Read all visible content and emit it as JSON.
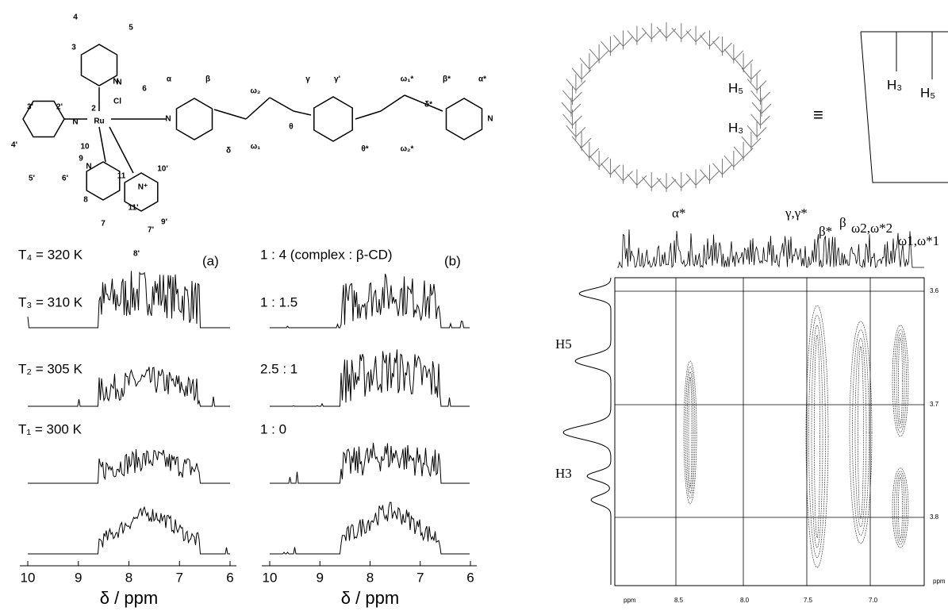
{
  "structure": {
    "labels": [
      "4",
      "5",
      "3",
      "6",
      "3'",
      "2'",
      "2",
      "N",
      "Cl",
      "Ru",
      "10",
      "N",
      "N",
      "N",
      "9",
      "4'",
      "5'",
      "6'",
      "N",
      "N⁺",
      "8",
      "7",
      "11",
      "11'",
      "10'",
      "9'",
      "7'",
      "8'",
      "α",
      "β",
      "δ",
      "ω₂",
      "ω₁",
      "θ",
      "γ",
      "γ'",
      "θ*",
      "ω₁*",
      "ω₂*",
      "δ*",
      "β*",
      "α*",
      "N"
    ]
  },
  "panel_a": {
    "tag": "(a)",
    "traces": [
      "T₄ = 320 K",
      "T₃ = 310 K",
      "T₂ = 305 K",
      "T₁ = 300 K"
    ],
    "ticks": [
      10,
      9,
      8,
      7,
      6
    ],
    "axis_title": "δ / ppm"
  },
  "panel_b": {
    "tag": "(b)",
    "traces": [
      "1 : 4 (complex : β-CD)",
      "1 : 1.5",
      "2.5 : 1",
      "1 :  0"
    ],
    "ticks": [
      10,
      9,
      8,
      7,
      6
    ],
    "axis_title": "δ / ppm"
  },
  "cyclodextrin": {
    "labels": [
      "H₅",
      "H₃"
    ],
    "equiv": "≡",
    "cone_labels": [
      "H₃",
      "H₅"
    ]
  },
  "noesy": {
    "top_labels": [
      "α*",
      "γ,γ*",
      "β*",
      "β",
      "ω2,ω*2",
      "ω1,ω*1"
    ],
    "left_labels": [
      "H5",
      "H3"
    ],
    "right_ticks": [
      "3.6",
      "3.7",
      "3.8",
      "ppm"
    ],
    "bottom_ticks": [
      "ppm",
      "8.5",
      "8.0",
      "7.5",
      "7.0"
    ]
  }
}
